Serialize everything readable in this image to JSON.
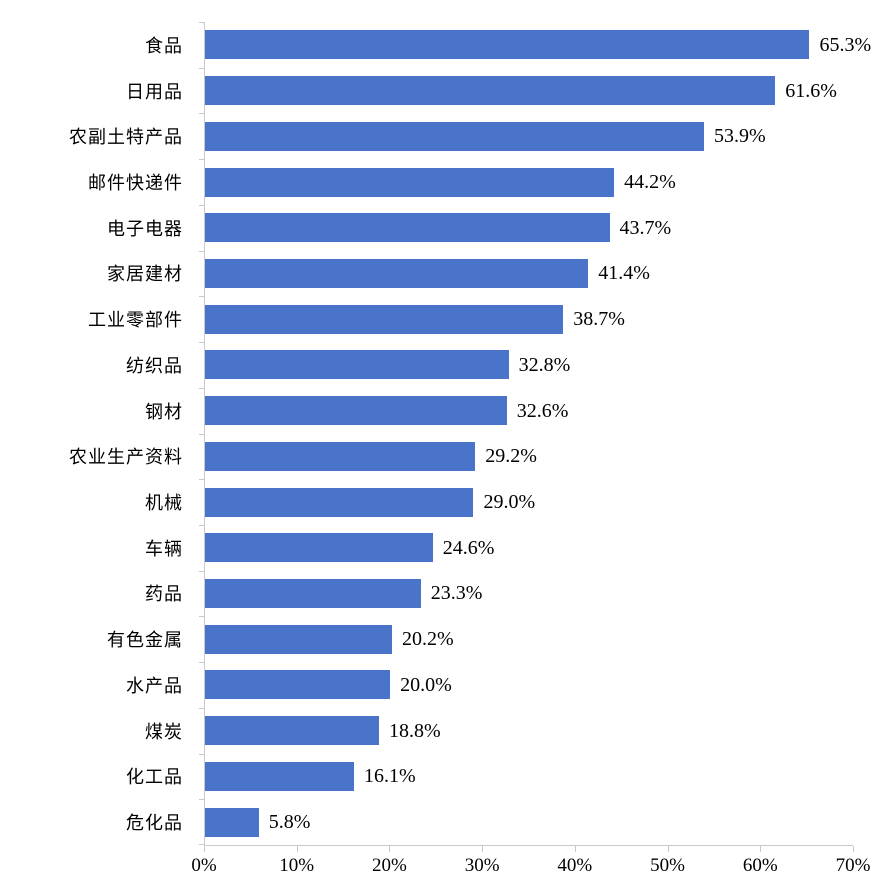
{
  "chart_data": {
    "type": "bar",
    "orientation": "horizontal",
    "title": "",
    "xlabel": "",
    "ylabel": "",
    "categories": [
      "食品",
      "日用品",
      "农副土特产品",
      "邮件快递件",
      "电子电器",
      "家居建材",
      "工业零部件",
      "纺织品",
      "钢材",
      "农业生产资料",
      "机械",
      "车辆",
      "药品",
      "有色金属",
      "水产品",
      "煤炭",
      "化工品",
      "危化品"
    ],
    "values": [
      65.3,
      61.6,
      53.9,
      44.2,
      43.7,
      41.4,
      38.7,
      32.8,
      32.6,
      29.2,
      29.0,
      24.6,
      23.3,
      20.2,
      20.0,
      18.8,
      16.1,
      5.8
    ],
    "value_labels": [
      "65.3%",
      "61.6%",
      "53.9%",
      "44.2%",
      "43.7%",
      "41.4%",
      "38.7%",
      "32.8%",
      "32.6%",
      "29.2%",
      "29.0%",
      "24.6%",
      "23.3%",
      "20.2%",
      "20.0%",
      "18.8%",
      "16.1%",
      "5.8%"
    ],
    "xlim": [
      0,
      70
    ],
    "x_tick_labels": [
      "0%",
      "10%",
      "20%",
      "30%",
      "40%",
      "50%",
      "60%",
      "70%"
    ],
    "grid": false,
    "legend": false,
    "bar_color": "#4a74c9",
    "axis_color": "#c9c9c9",
    "text_color": "#000000"
  }
}
